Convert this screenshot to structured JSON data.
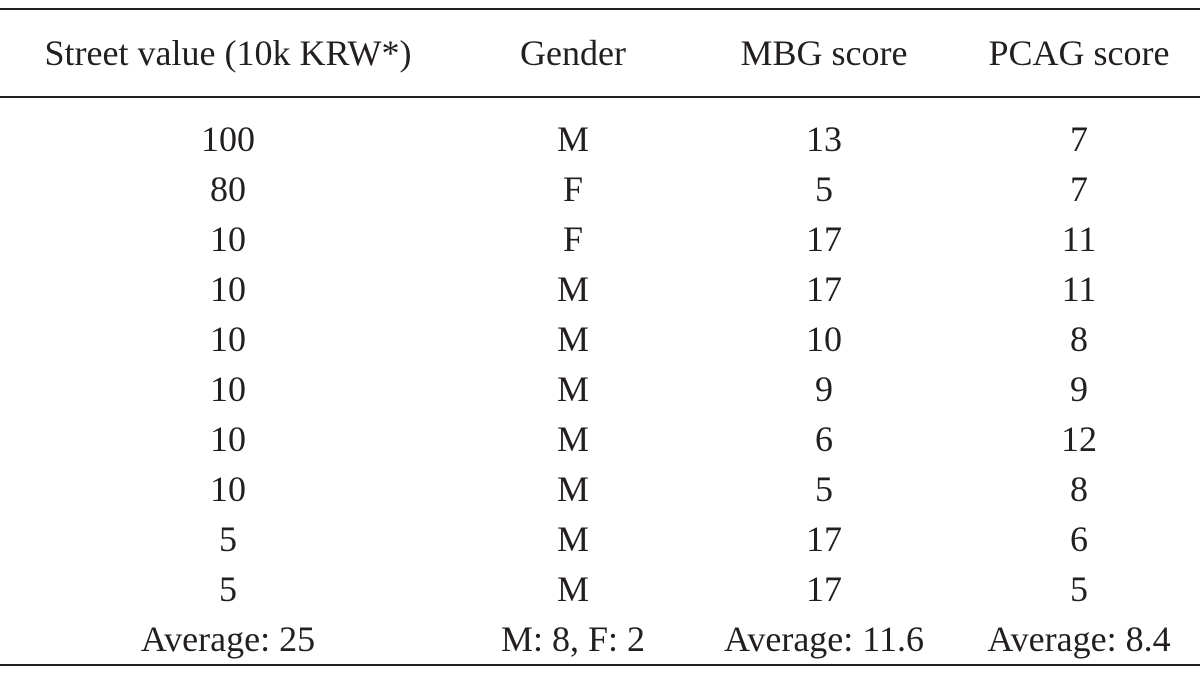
{
  "table": {
    "headers": [
      "Street value (10k KRW*)",
      "Gender",
      "MBG score",
      "PCAG score"
    ],
    "rows": [
      [
        "100",
        "M",
        "13",
        "7"
      ],
      [
        "80",
        "F",
        "5",
        "7"
      ],
      [
        "10",
        "F",
        "17",
        "11"
      ],
      [
        "10",
        "M",
        "17",
        "11"
      ],
      [
        "10",
        "M",
        "10",
        "8"
      ],
      [
        "10",
        "M",
        "9",
        "9"
      ],
      [
        "10",
        "M",
        "6",
        "12"
      ],
      [
        "10",
        "M",
        "5",
        "8"
      ],
      [
        "5",
        "M",
        "17",
        "6"
      ],
      [
        "5",
        "M",
        "17",
        "5"
      ]
    ],
    "summary": [
      "Average: 25",
      "M: 8, F: 2",
      "Average: 11.6",
      "Average: 8.4"
    ]
  }
}
